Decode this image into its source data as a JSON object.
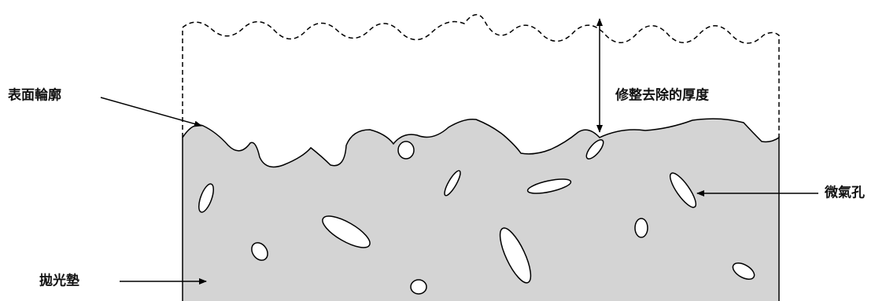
{
  "labels": {
    "surface_profile": "表面輪廓",
    "dressing_thickness": "修整去除的厚度",
    "micropore": "微氣孔",
    "pad": "拋光墊"
  }
}
